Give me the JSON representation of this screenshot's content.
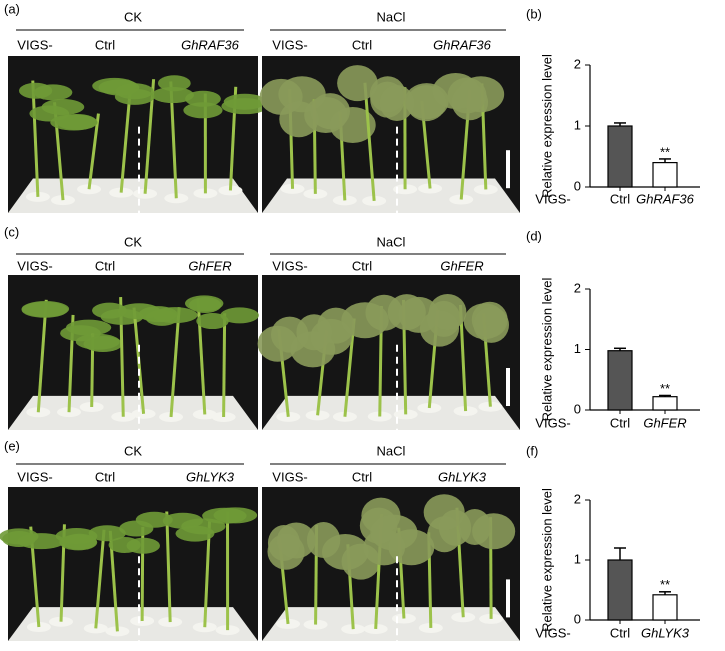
{
  "photo_panels": [
    {
      "label": "(a)",
      "groups": [
        {
          "title": "CK",
          "columns": [
            "VIGS-",
            "Ctrl",
            "GhRAF36"
          ]
        },
        {
          "title": "NaCl",
          "columns": [
            "VIGS-",
            "Ctrl",
            "GhRAF36"
          ]
        }
      ]
    },
    {
      "label": "(c)",
      "groups": [
        {
          "title": "CK",
          "columns": [
            "VIGS-",
            "Ctrl",
            "GhFER"
          ]
        },
        {
          "title": "NaCl",
          "columns": [
            "VIGS-",
            "Ctrl",
            "GhFER"
          ]
        }
      ]
    },
    {
      "label": "(e)",
      "groups": [
        {
          "title": "CK",
          "columns": [
            "VIGS-",
            "Ctrl",
            "GhLYK3"
          ]
        },
        {
          "title": "NaCl",
          "columns": [
            "VIGS-",
            "Ctrl",
            "GhLYK3"
          ]
        }
      ]
    }
  ],
  "chart_data": [
    {
      "type": "bar",
      "panel_label": "(b)",
      "y_label": "Relative expression level",
      "prefix_label": "VIGS-",
      "categories": [
        "Ctrl",
        "GhRAF36"
      ],
      "values": [
        1.0,
        0.4
      ],
      "errors": [
        0.05,
        0.06
      ],
      "colors": [
        "#555555",
        "#ffffff"
      ],
      "annotation": "**",
      "ylim": [
        0,
        2
      ],
      "yticks": [
        0,
        1,
        2
      ]
    },
    {
      "type": "bar",
      "panel_label": "(d)",
      "y_label": "Relative expression level",
      "prefix_label": "VIGS-",
      "categories": [
        "Ctrl",
        "GhFER"
      ],
      "values": [
        0.98,
        0.22
      ],
      "errors": [
        0.04,
        0.02
      ],
      "colors": [
        "#555555",
        "#ffffff"
      ],
      "annotation": "**",
      "ylim": [
        0,
        2
      ],
      "yticks": [
        0,
        1,
        2
      ]
    },
    {
      "type": "bar",
      "panel_label": "(f)",
      "y_label": "Relative expression level",
      "prefix_label": "VIGS-",
      "categories": [
        "Ctrl",
        "GhLYK3"
      ],
      "values": [
        1.0,
        0.42
      ],
      "errors": [
        0.2,
        0.05
      ],
      "colors": [
        "#555555",
        "#ffffff"
      ],
      "annotation": "**",
      "ylim": [
        0,
        2
      ],
      "yticks": [
        0,
        1,
        2
      ]
    }
  ]
}
